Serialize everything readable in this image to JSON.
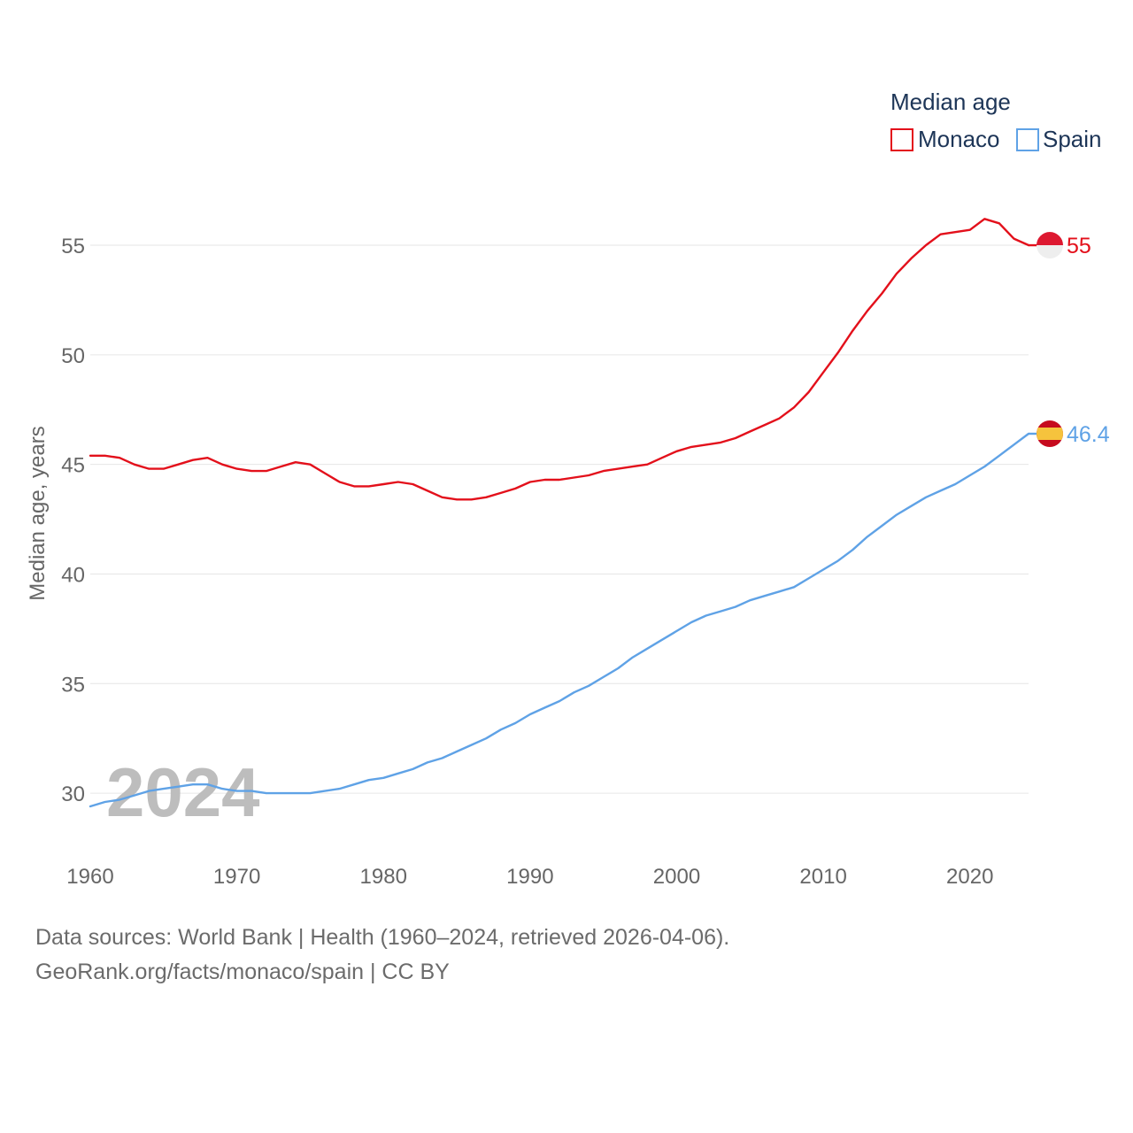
{
  "footer": {
    "line1": "Data sources: World Bank | Health (1960–2024, retrieved 2026-04-06).",
    "line2": "GeoRank.org/facts/monaco/spain | CC BY"
  },
  "chart_data": {
    "type": "line",
    "title": "",
    "xlabel": "",
    "ylabel": "Median age, years",
    "legend_title": "Median age",
    "watermark_year": "2024",
    "xlim": [
      1960,
      2024
    ],
    "ylim": [
      27.5,
      59
    ],
    "x_ticks": [
      1960,
      1970,
      1980,
      1990,
      2000,
      2010,
      2020
    ],
    "y_ticks": [
      30,
      35,
      40,
      45,
      50,
      55
    ],
    "x": [
      1960,
      1961,
      1962,
      1963,
      1964,
      1965,
      1966,
      1967,
      1968,
      1969,
      1970,
      1971,
      1972,
      1973,
      1974,
      1975,
      1976,
      1977,
      1978,
      1979,
      1980,
      1981,
      1982,
      1983,
      1984,
      1985,
      1986,
      1987,
      1988,
      1989,
      1990,
      1991,
      1992,
      1993,
      1994,
      1995,
      1996,
      1997,
      1998,
      1999,
      2000,
      2001,
      2002,
      2003,
      2004,
      2005,
      2006,
      2007,
      2008,
      2009,
      2010,
      2011,
      2012,
      2013,
      2014,
      2015,
      2016,
      2017,
      2018,
      2019,
      2020,
      2021,
      2022,
      2023,
      2024
    ],
    "series": [
      {
        "name": "Monaco",
        "color": "#e3101b",
        "flag": "monaco-flag",
        "end_label": "55",
        "values": [
          45.4,
          45.4,
          45.3,
          45.0,
          44.8,
          44.8,
          45.0,
          45.2,
          45.3,
          45.0,
          44.8,
          44.7,
          44.7,
          44.9,
          45.1,
          45.0,
          44.6,
          44.2,
          44.0,
          44.0,
          44.1,
          44.2,
          44.1,
          43.8,
          43.5,
          43.4,
          43.4,
          43.5,
          43.7,
          43.9,
          44.2,
          44.3,
          44.3,
          44.4,
          44.5,
          44.7,
          44.8,
          44.9,
          45.0,
          45.3,
          45.6,
          45.8,
          45.9,
          46.0,
          46.2,
          46.5,
          46.8,
          47.1,
          47.6,
          48.3,
          49.2,
          50.1,
          51.1,
          52.0,
          52.8,
          53.7,
          54.4,
          55.0,
          55.5,
          55.6,
          55.7,
          56.2,
          56.0,
          55.3,
          55.0
        ]
      },
      {
        "name": "Spain",
        "color": "#5fa2e6",
        "flag": "spain-flag",
        "end_label": "46.4",
        "values": [
          29.4,
          29.6,
          29.7,
          29.9,
          30.1,
          30.2,
          30.3,
          30.4,
          30.4,
          30.2,
          30.1,
          30.1,
          30.0,
          30.0,
          30.0,
          30.0,
          30.1,
          30.2,
          30.4,
          30.6,
          30.7,
          30.9,
          31.1,
          31.4,
          31.6,
          31.9,
          32.2,
          32.5,
          32.9,
          33.2,
          33.6,
          33.9,
          34.2,
          34.6,
          34.9,
          35.3,
          35.7,
          36.2,
          36.6,
          37.0,
          37.4,
          37.8,
          38.1,
          38.3,
          38.5,
          38.8,
          39.0,
          39.2,
          39.4,
          39.8,
          40.2,
          40.6,
          41.1,
          41.7,
          42.2,
          42.7,
          43.1,
          43.5,
          43.8,
          44.1,
          44.5,
          44.9,
          45.4,
          45.9,
          46.4
        ]
      }
    ]
  }
}
